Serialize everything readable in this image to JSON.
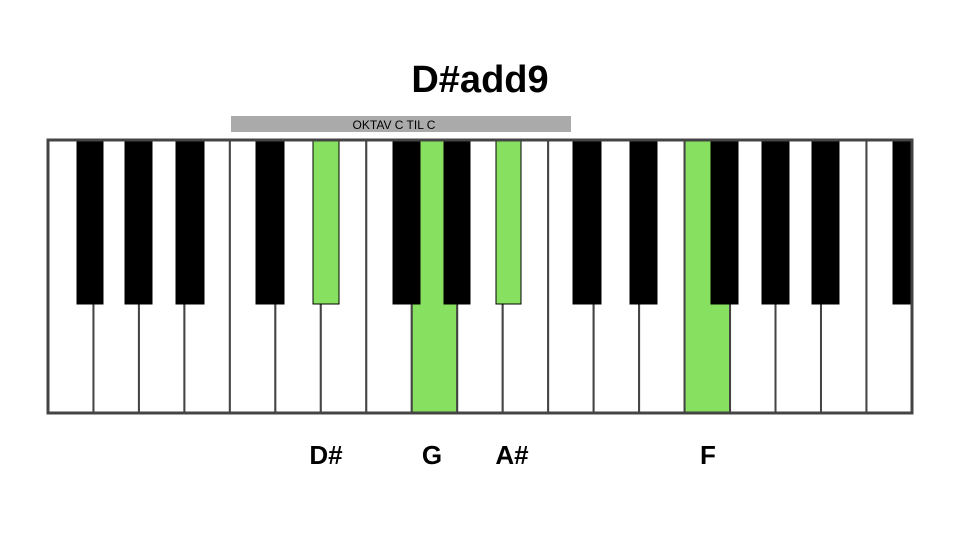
{
  "title": "D#add9",
  "octave_label": "OKTAV C TIL C",
  "notes": [
    {
      "label": "D#"
    },
    {
      "label": "G"
    },
    {
      "label": "A#"
    },
    {
      "label": "F"
    }
  ]
}
